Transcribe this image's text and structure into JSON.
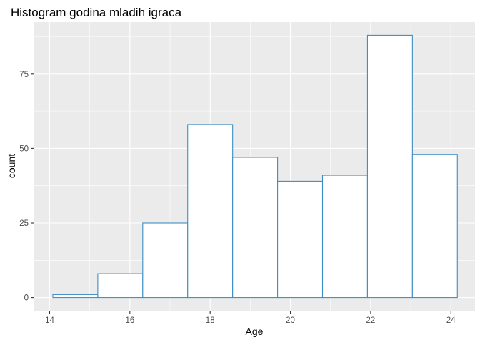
{
  "chart_data": {
    "type": "bar",
    "subtype": "histogram",
    "title": "Histogram godina mladih igraca",
    "xlabel": "Age",
    "ylabel": "count",
    "bins": [
      {
        "x0": 14.08,
        "x1": 15.2,
        "count": 1
      },
      {
        "x0": 15.2,
        "x1": 16.32,
        "count": 8
      },
      {
        "x0": 16.32,
        "x1": 17.44,
        "count": 25
      },
      {
        "x0": 17.44,
        "x1": 18.56,
        "count": 58
      },
      {
        "x0": 18.56,
        "x1": 19.68,
        "count": 47
      },
      {
        "x0": 19.68,
        "x1": 20.8,
        "count": 39
      },
      {
        "x0": 20.8,
        "x1": 21.92,
        "count": 41
      },
      {
        "x0": 21.92,
        "x1": 23.04,
        "count": 88
      },
      {
        "x0": 23.04,
        "x1": 24.16,
        "count": 48
      }
    ],
    "xlim": [
      13.6,
      24.6
    ],
    "ylim": [
      -4.4,
      92.4
    ],
    "x_ticks": [
      14,
      16,
      18,
      20,
      22,
      24
    ],
    "y_ticks": [
      0,
      25,
      50,
      75
    ],
    "grid": true,
    "legend": "none",
    "colors": {
      "panel": "#ebebeb",
      "grid": "#ffffff",
      "bar_fill": "#ffffff",
      "bar_outline": "#3e8ec4"
    }
  }
}
